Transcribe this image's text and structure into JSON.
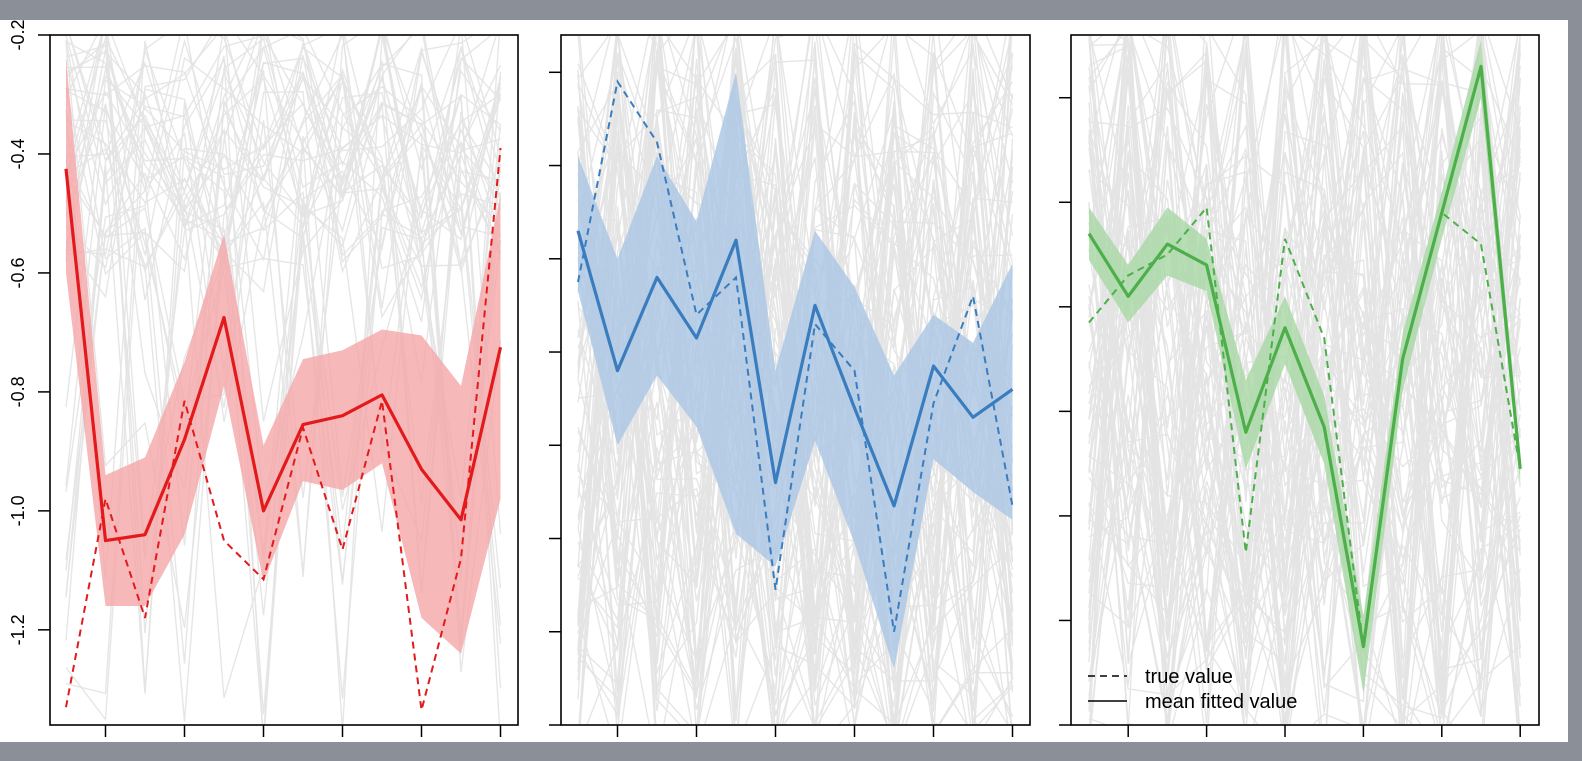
{
  "chart_data": [
    {
      "type": "line",
      "panel": "left",
      "color": "#e31a1c",
      "band_color": "#f4a6a8",
      "x": [
        1,
        2,
        3,
        4,
        5,
        6,
        7,
        8,
        9,
        10,
        11,
        12
      ],
      "ylim": [
        -1.36,
        -0.2
      ],
      "yticks": [
        -0.2,
        -0.4,
        -0.6,
        -0.8,
        -1.0,
        -1.2
      ],
      "ytick_labels": [
        "-0.2",
        "-0.4",
        "-0.6",
        "-0.8",
        "-1.0",
        "-1.2"
      ],
      "series": [
        {
          "role": "mean fitted value",
          "values": [
            -0.425,
            -1.05,
            -1.04,
            -0.88,
            -0.675,
            -1.0,
            -0.855,
            -0.84,
            -0.805,
            -0.93,
            -1.015,
            -0.725
          ]
        },
        {
          "role": "true value",
          "values": [
            -1.33,
            -0.98,
            -1.18,
            -0.815,
            -1.05,
            -1.115,
            -0.86,
            -1.065,
            -0.815,
            -1.335,
            -1.08,
            -0.39
          ]
        },
        {
          "role": "band upper",
          "values": [
            -0.24,
            -0.94,
            -0.91,
            -0.75,
            -0.535,
            -0.89,
            -0.745,
            -0.73,
            -0.695,
            -0.705,
            -0.79,
            -0.47
          ]
        },
        {
          "role": "band lower",
          "values": [
            -0.6,
            -1.16,
            -1.16,
            -1.04,
            -0.79,
            -1.12,
            -0.95,
            -0.965,
            -0.92,
            -1.18,
            -1.24,
            -0.98
          ]
        }
      ]
    },
    {
      "type": "line",
      "panel": "middle",
      "color": "#3a7dbf",
      "band_color": "#a9c6e3",
      "x": [
        1,
        2,
        3,
        4,
        5,
        6,
        7,
        8,
        9,
        10,
        11,
        12
      ],
      "ylim": [
        0,
        7.4
      ],
      "yticks": [
        0,
        1,
        2,
        3,
        4,
        5,
        6,
        7
      ],
      "series": [
        {
          "role": "mean fitted value",
          "values": [
            5.3,
            3.8,
            4.8,
            4.15,
            5.2,
            2.6,
            4.5,
            3.4,
            2.35,
            3.85,
            3.3,
            3.6
          ]
        },
        {
          "role": "true value",
          "values": [
            4.75,
            6.9,
            6.25,
            4.4,
            4.8,
            1.45,
            4.3,
            3.8,
            1.0,
            3.45,
            4.6,
            2.35
          ]
        },
        {
          "role": "band upper",
          "values": [
            6.1,
            5.0,
            6.1,
            5.4,
            7.0,
            3.8,
            5.3,
            4.7,
            3.75,
            4.4,
            4.1,
            4.95
          ]
        },
        {
          "role": "band lower",
          "values": [
            4.65,
            3.0,
            3.75,
            3.2,
            2.05,
            1.7,
            3.05,
            1.95,
            0.6,
            2.85,
            2.5,
            2.2
          ]
        }
      ]
    },
    {
      "type": "line",
      "panel": "right",
      "color": "#4daf4a",
      "band_color": "#a6d7a3",
      "x": [
        1,
        2,
        3,
        4,
        5,
        6,
        7,
        8,
        9,
        10,
        11,
        12
      ],
      "ylim": [
        0,
        6.6
      ],
      "yticks": [
        0,
        1,
        2,
        3,
        4,
        5,
        6
      ],
      "series": [
        {
          "role": "mean fitted value",
          "values": [
            4.7,
            4.1,
            4.6,
            4.4,
            2.8,
            3.8,
            2.85,
            0.75,
            3.5,
            4.9,
            6.3,
            2.45
          ]
        },
        {
          "role": "true value",
          "values": [
            3.85,
            4.3,
            4.5,
            4.95,
            1.65,
            4.65,
            3.7,
            0.75,
            3.5,
            4.9,
            4.6,
            2.45
          ]
        },
        {
          "role": "band upper",
          "values": [
            4.95,
            4.4,
            4.95,
            4.65,
            3.3,
            4.1,
            3.15,
            1.05,
            3.75,
            5.1,
            6.55,
            2.6
          ]
        },
        {
          "role": "band lower",
          "values": [
            4.45,
            3.85,
            4.3,
            4.15,
            2.45,
            3.45,
            2.5,
            0.3,
            3.2,
            4.65,
            6.0,
            2.3
          ]
        }
      ]
    }
  ],
  "legend": {
    "placement": "bottom-left of right panel",
    "items": [
      {
        "label": "true value",
        "style": "dashed"
      },
      {
        "label": "mean fitted value",
        "style": "solid"
      }
    ]
  },
  "colors": {
    "background_lines": "#e3e3e3",
    "frame": "#000000",
    "window_bg": "#8a8f98"
  }
}
